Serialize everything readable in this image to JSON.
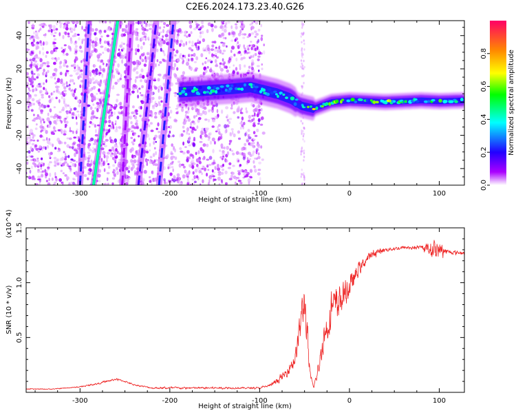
{
  "chart_data": [
    {
      "type": "heatmap",
      "title": "C2E6.2024.173.23.40.G26",
      "xlabel": "Height of straight line (km)",
      "ylabel": "Frequency (Hz)",
      "xlim": [
        -360,
        128
      ],
      "ylim": [
        -50,
        49
      ],
      "xticks": [
        -300,
        -200,
        -100,
        0,
        100
      ],
      "yticks": [
        -40,
        -20,
        0,
        20,
        40
      ],
      "colorbar": {
        "label": "Normalized spectral amplitude",
        "range": [
          0.0,
          1.0
        ],
        "ticks": [
          "0.0",
          "0.2",
          "0.4",
          "0.6",
          "0.8"
        ],
        "tick_values": [
          0.0,
          0.2,
          0.4,
          0.6,
          0.8
        ],
        "colors": [
          "#ffffff",
          "#aa00ff",
          "#2200ff",
          "#00ffff",
          "#00ff00",
          "#ffff00",
          "#ff8800",
          "#ff0066"
        ]
      },
      "features": {
        "ridge": [
          {
            "x": -190,
            "y": 6,
            "amp": 0.5
          },
          {
            "x": -160,
            "y": 7,
            "amp": 0.5
          },
          {
            "x": -130,
            "y": 8,
            "amp": 0.45
          },
          {
            "x": -110,
            "y": 9,
            "amp": 0.45
          },
          {
            "x": -95,
            "y": 7,
            "amp": 0.5
          },
          {
            "x": -80,
            "y": 5,
            "amp": 0.45
          },
          {
            "x": -65,
            "y": 2,
            "amp": 0.45
          },
          {
            "x": -55,
            "y": -2,
            "amp": 0.4
          },
          {
            "x": -48,
            "y": -3,
            "amp": 0.55
          },
          {
            "x": -40,
            "y": -4,
            "amp": 0.8
          },
          {
            "x": -30,
            "y": -2,
            "amp": 0.6
          },
          {
            "x": -20,
            "y": 0,
            "amp": 0.75
          },
          {
            "x": 0,
            "y": 1,
            "amp": 0.6
          },
          {
            "x": 20,
            "y": 0.5,
            "amp": 0.55
          },
          {
            "x": 40,
            "y": 0,
            "amp": 0.8
          },
          {
            "x": 60,
            "y": 0.5,
            "amp": 0.5
          },
          {
            "x": 80,
            "y": 1,
            "amp": 0.5
          },
          {
            "x": 100,
            "y": 0.5,
            "amp": 0.6
          },
          {
            "x": 128,
            "y": 1,
            "amp": 0.5
          }
        ],
        "streaks": [
          {
            "x_at_bottom": -285,
            "x_at_top": -258,
            "amp": 0.5
          },
          {
            "x_at_bottom": -300,
            "x_at_top": -290,
            "amp": 0.3
          },
          {
            "x_at_bottom": -253,
            "x_at_top": -243,
            "amp": 0.15
          },
          {
            "x_at_bottom": -235,
            "x_at_top": -215,
            "amp": 0.25
          },
          {
            "x_at_bottom": -212,
            "x_at_top": -196,
            "amp": 0.3
          }
        ]
      }
    },
    {
      "type": "line",
      "title": "",
      "xlabel": "Height of straight line (km)",
      "ylabel": "SNR (10 * v/v)",
      "y_multiplier": "(x10^4)",
      "xlim": [
        -360,
        128
      ],
      "ylim": [
        0,
        1.5
      ],
      "xticks": [
        -300,
        -200,
        -100,
        0,
        100
      ],
      "yticks": [
        "0.5",
        "1.0",
        "1.5"
      ],
      "ytick_values": [
        0.5,
        1.0,
        1.5
      ],
      "series": [
        {
          "color": "#ee2222",
          "x": [
            -360,
            -330,
            -300,
            -280,
            -270,
            -260,
            -250,
            -240,
            -220,
            -200,
            -150,
            -100,
            -90,
            -80,
            -70,
            -60,
            -55,
            -50,
            -47,
            -44,
            -40,
            -35,
            -30,
            -25,
            -20,
            -15,
            -10,
            -5,
            0,
            10,
            20,
            30,
            40,
            60,
            80,
            90,
            95,
            100,
            110,
            128
          ],
          "y": [
            0.03,
            0.03,
            0.05,
            0.08,
            0.1,
            0.12,
            0.1,
            0.07,
            0.04,
            0.04,
            0.04,
            0.04,
            0.06,
            0.1,
            0.18,
            0.32,
            0.6,
            0.85,
            0.5,
            0.15,
            0.05,
            0.18,
            0.45,
            0.6,
            0.75,
            0.8,
            0.85,
            0.9,
            0.95,
            1.12,
            1.22,
            1.28,
            1.3,
            1.32,
            1.32,
            1.31,
            1.3,
            1.3,
            1.28,
            1.27
          ],
          "noise": [
            0.005,
            0.005,
            0.006,
            0.01,
            0.012,
            0.012,
            0.01,
            0.008,
            0.01,
            0.012,
            0.012,
            0.01,
            0.015,
            0.03,
            0.05,
            0.1,
            0.2,
            0.25,
            0.18,
            0.06,
            0.02,
            0.07,
            0.15,
            0.18,
            0.2,
            0.2,
            0.18,
            0.15,
            0.12,
            0.08,
            0.05,
            0.035,
            0.025,
            0.02,
            0.02,
            0.08,
            0.12,
            0.08,
            0.025,
            0.02
          ]
        }
      ]
    }
  ]
}
